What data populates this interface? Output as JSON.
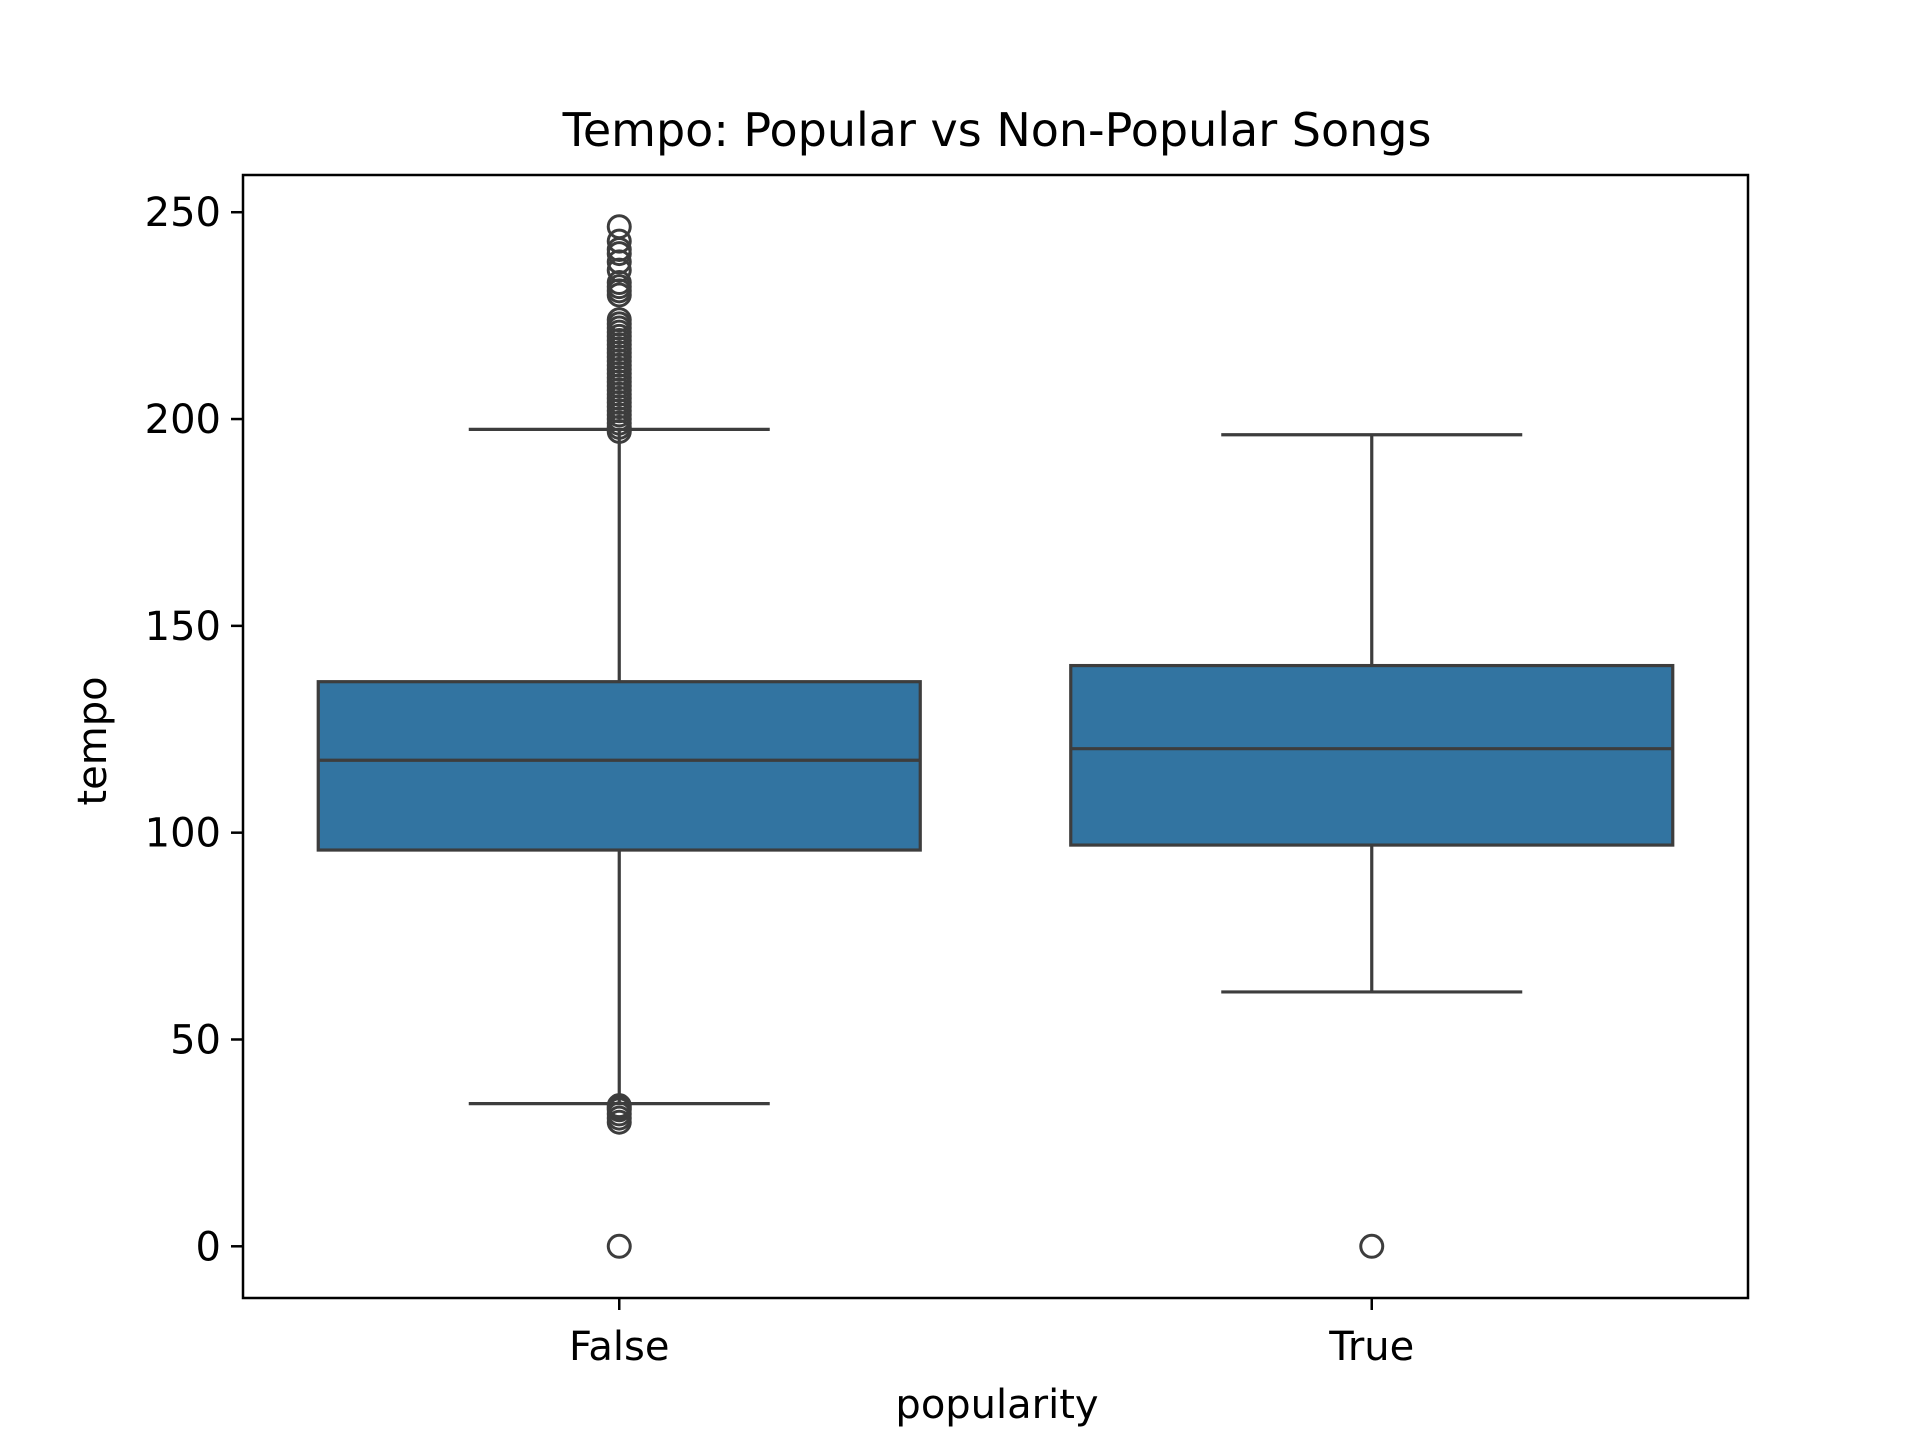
{
  "chart_data": {
    "type": "box",
    "title": "Tempo: Popular vs Non-Popular Songs",
    "xlabel": "popularity",
    "ylabel": "tempo",
    "ylim": [
      -12.5,
      259
    ],
    "yticks": [
      0,
      50,
      100,
      150,
      200,
      250
    ],
    "yticklabels": [
      "0",
      "50",
      "100",
      "150",
      "200",
      "250"
    ],
    "categories": [
      "False",
      "True"
    ],
    "boxes": [
      {
        "category": "False",
        "whisker_low": 34.5,
        "q1": 95.8,
        "median": 117.5,
        "q3": 136.5,
        "whisker_high": 197.5,
        "outliers": [
          0,
          30,
          31,
          32,
          33,
          33.5,
          34,
          197,
          198,
          199,
          200,
          201,
          202,
          203,
          204,
          205,
          206,
          207,
          208,
          209,
          210,
          211,
          212,
          213,
          214,
          215,
          216,
          217,
          218,
          219,
          220,
          221,
          222,
          223,
          224,
          230,
          231,
          232,
          233,
          236,
          238,
          240,
          241,
          243,
          246.5
        ]
      },
      {
        "category": "True",
        "whisker_low": 61.5,
        "q1": 97,
        "median": 120.3,
        "q3": 140.4,
        "whisker_high": 196.2,
        "outliers": [
          0
        ]
      }
    ],
    "colors": {
      "box_fill": "#3274a1",
      "line": "#3d3d3d",
      "axes": "#000000"
    },
    "grid": false,
    "legend": "none"
  }
}
